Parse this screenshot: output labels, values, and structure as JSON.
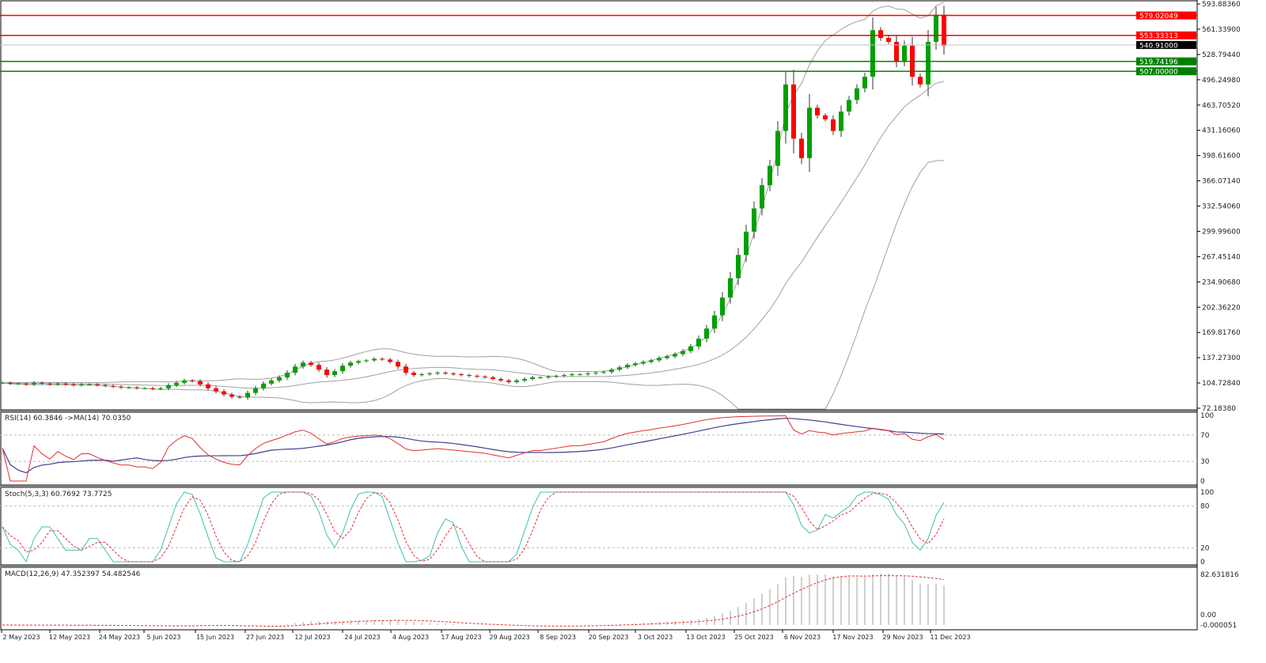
{
  "chart_data": {
    "type": "candlestick",
    "price_axis": {
      "ylim": [
        72.1838,
        593.8836
      ],
      "ticks": [
        "593.88360",
        "561.33900",
        "528.79440",
        "496.24980",
        "463.70520",
        "431.16060",
        "398.61600",
        "366.07140",
        "332.54060",
        "299.99600",
        "267.45140",
        "234.90680",
        "202.36220",
        "169.81760",
        "137.27300",
        "104.72840",
        "72.18380"
      ]
    },
    "date_ticks": [
      "2 May 2023",
      "12 May 2023",
      "24 May 2023",
      "5 Jun 2023",
      "15 Jun 2023",
      "27 Jun 2023",
      "12 Jul 2023",
      "24 Jul 2023",
      "4 Aug 2023",
      "17 Aug 2023",
      "29 Aug 2023",
      "8 Sep 2023",
      "20 Sep 2023",
      "3 Oct 2023",
      "13 Oct 2023",
      "25 Oct 2023",
      "6 Nov 2023",
      "17 Nov 2023",
      "29 Nov 2023",
      "11 Dec 2023"
    ],
    "closes": [
      105,
      104,
      104,
      103,
      105,
      104,
      103,
      104,
      103,
      102,
      103,
      103,
      102,
      101,
      100,
      99,
      99,
      98,
      98,
      97,
      98,
      102,
      105,
      108,
      107,
      103,
      98,
      94,
      90,
      87,
      86,
      92,
      98,
      104,
      108,
      112,
      118,
      126,
      131,
      128,
      122,
      115,
      120,
      127,
      131,
      133,
      134,
      136,
      135,
      132,
      126,
      118,
      115,
      116,
      117,
      118,
      117,
      116,
      115,
      114,
      113,
      112,
      110,
      108,
      106,
      108,
      110,
      112,
      112,
      113,
      114,
      115,
      116,
      116,
      117,
      118,
      119,
      122,
      125,
      128,
      130,
      132,
      134,
      137,
      139,
      142,
      146,
      152,
      162,
      175,
      192,
      215,
      240,
      270,
      300,
      330,
      360,
      385,
      430,
      490,
      420,
      395,
      460,
      450,
      445,
      430,
      455,
      470,
      485,
      500,
      560,
      550,
      545,
      520,
      540,
      500,
      490,
      545,
      580,
      540
    ],
    "levels": [
      {
        "value": "579.02049",
        "color": "#ff0000"
      },
      {
        "value": "553.33313",
        "color": "#ff0000"
      },
      {
        "value": "540.91000",
        "color": "#000000",
        "current": true
      },
      {
        "value": "519.74196",
        "color": "#008000"
      },
      {
        "value": "507.00000",
        "color": "#008000"
      }
    ],
    "colors": {
      "bull": "#00a000",
      "bear": "#ff0000",
      "bands": "#a0a0a0",
      "rsi": "#e03030",
      "rsi_ma": "#404090",
      "stoch_main": "#40c0b0",
      "stoch_signal": "#e03030",
      "macd_hist": "#a0a0a0",
      "macd_signal": "#e03030"
    },
    "indicators": {
      "rsi": {
        "label": "RSI(14) 60.3846  ->MA(14) 70.0350",
        "ticks": [
          "100",
          "70",
          "30",
          "0"
        ]
      },
      "stoch": {
        "label": "Stoch(5,3,3) 60.7692 73.7725",
        "ticks": [
          "100",
          "80",
          "20",
          "0"
        ]
      },
      "macd": {
        "label": "MACD(12,26,9) 47.352397 54.482546",
        "ticks": [
          "82.631816",
          "0.00",
          "-0.000051"
        ]
      }
    }
  }
}
